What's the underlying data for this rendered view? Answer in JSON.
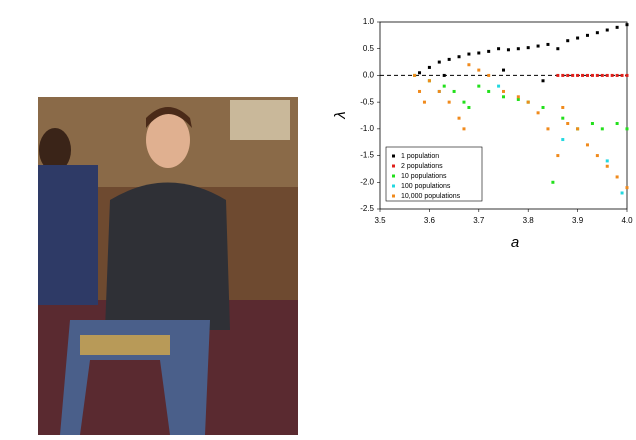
{
  "chart_data": {
    "type": "scatter",
    "xlabel": "a",
    "ylabel": "λ",
    "xlim": [
      3.5,
      4.0
    ],
    "ylim": [
      -2.5,
      1.0
    ],
    "xticks": [
      3.5,
      3.6,
      3.7,
      3.8,
      3.9,
      {
        "value": 4.0,
        "label": "4.0"
      }
    ],
    "yticks": [
      {
        "value": 1.0,
        "label": "1.0"
      },
      0.5,
      {
        "value": 0.0,
        "label": "0.0"
      },
      -0.5,
      {
        "value": -1.0,
        "label": "-1.0"
      },
      -1.5,
      {
        "value": -2.0,
        "label": "-2.0"
      },
      -2.5
    ],
    "series": [
      {
        "name": "1 population",
        "color": "#000000",
        "x": [
          3.58,
          3.6,
          3.62,
          3.63,
          3.64,
          3.66,
          3.68,
          3.7,
          3.72,
          3.74,
          3.75,
          3.76,
          3.78,
          3.8,
          3.82,
          3.83,
          3.84,
          3.86,
          3.88,
          3.9,
          3.92,
          3.94,
          3.96,
          3.98,
          4.0
        ],
        "values": [
          0.05,
          0.15,
          0.25,
          0.0,
          0.3,
          0.35,
          0.4,
          0.42,
          0.45,
          0.5,
          0.1,
          0.48,
          0.5,
          0.52,
          0.55,
          -0.1,
          0.58,
          0.5,
          0.65,
          0.7,
          0.75,
          0.8,
          0.85,
          0.9,
          0.95
        ]
      },
      {
        "name": "2 populations",
        "color": "#e0201b",
        "x": [
          3.86,
          3.87,
          3.88,
          3.89,
          3.9,
          3.91,
          3.92,
          3.93,
          3.94,
          3.95,
          3.96,
          3.97,
          3.98,
          3.99,
          4.0
        ],
        "values": [
          0,
          0,
          0,
          0,
          0,
          0,
          0,
          0,
          0,
          0,
          0,
          0,
          0,
          0,
          0
        ]
      },
      {
        "name": "10 populations",
        "color": "#22e01b",
        "x": [
          3.57,
          3.6,
          3.63,
          3.65,
          3.67,
          3.68,
          3.7,
          3.72,
          3.75,
          3.78,
          3.8,
          3.83,
          3.85,
          3.87,
          3.9,
          3.93,
          3.95,
          3.98,
          4.0
        ],
        "values": [
          0.0,
          -0.1,
          -0.2,
          -0.3,
          -0.5,
          -0.6,
          -0.2,
          -0.3,
          -0.4,
          -0.45,
          -0.5,
          -0.6,
          -2.0,
          -0.8,
          -1.0,
          -0.9,
          -1.0,
          -0.9,
          -1.0
        ]
      },
      {
        "name": "100 populations",
        "color": "#22d8e0",
        "x": [
          3.62,
          3.74,
          3.87,
          3.96,
          3.99
        ],
        "values": [
          -0.3,
          -0.2,
          -1.2,
          -1.6,
          -2.2
        ]
      },
      {
        "name": "10,000 populations",
        "color": "#f08a1c",
        "x": [
          3.57,
          3.58,
          3.59,
          3.6,
          3.62,
          3.64,
          3.66,
          3.67,
          3.68,
          3.7,
          3.72,
          3.75,
          3.78,
          3.8,
          3.82,
          3.84,
          3.86,
          3.87,
          3.88,
          3.9,
          3.92,
          3.94,
          3.96,
          3.98,
          4.0
        ],
        "values": [
          0.0,
          -0.3,
          -0.5,
          -0.1,
          -0.3,
          -0.5,
          -0.8,
          -1.0,
          0.2,
          0.1,
          0.0,
          -0.3,
          -0.4,
          -0.5,
          -0.7,
          -1.0,
          -1.5,
          -0.6,
          -0.9,
          -1.0,
          -1.3,
          -1.5,
          -1.7,
          -1.9,
          -2.1
        ]
      }
    ]
  }
}
